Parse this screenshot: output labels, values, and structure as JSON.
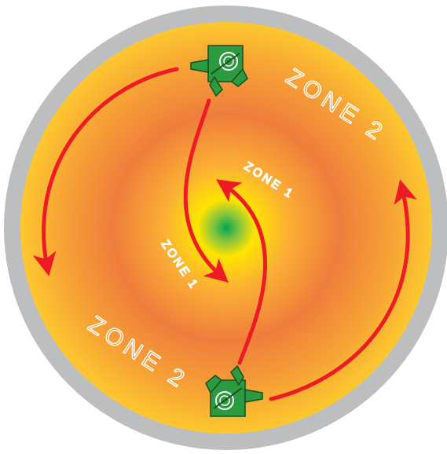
{
  "labels": {
    "zone2_top": "ZONE 2",
    "zone2_bottom": "ZONE 2",
    "zone1_upper": "ZONE 1",
    "zone1_lower": "ZONE 1"
  },
  "colors": {
    "rim": "#bcbec0",
    "field_edge": "#fdc82f",
    "field_mid": "#ef7d3c",
    "field_inner": "#ffe400",
    "center": "#00a651",
    "arrow": "#ed1c24",
    "device_body": "#2c9a3e",
    "device_outline": "#1a4d22"
  },
  "icons": {
    "top_device": "sprinkler-head-icon",
    "bottom_device": "sprinkler-head-icon"
  }
}
